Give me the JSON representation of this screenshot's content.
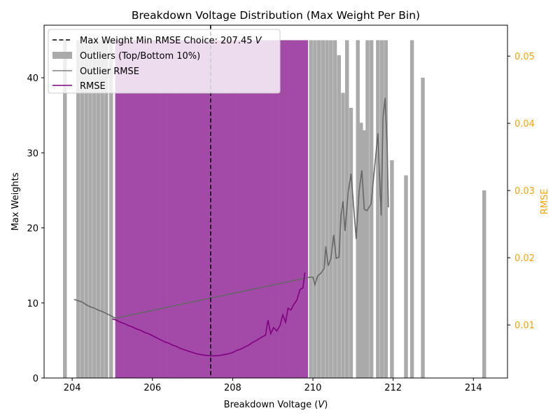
{
  "chart_data": {
    "type": "bar",
    "title": "Breakdown Voltage Distribution (Max Weight Per Bin)",
    "xlabel": "Breakdown Voltage (",
    "xlabel_italic": "V",
    "xlabel_tail": ")",
    "ylabel": "Max Weights",
    "y2label": "RMSE",
    "xlim": [
      203.3,
      214.85
    ],
    "ylim": [
      0,
      47.0
    ],
    "y2lim": [
      0.0021,
      0.0546
    ],
    "xticks": [
      204,
      206,
      208,
      210,
      212,
      214
    ],
    "yticks": [
      0,
      10,
      20,
      30,
      40
    ],
    "y2ticks": [
      0.01,
      0.02,
      0.03,
      0.04,
      0.05
    ],
    "y2ticks_labels": [
      "0.01",
      "0.02",
      "0.03",
      "0.04",
      "0.05"
    ],
    "colors": {
      "outlier_bar": "#aaaaaa",
      "main_bar": "#a34aa8",
      "rmse_line": "#800080",
      "outlier_rmse_line": "#666666",
      "choice_line": "#000000",
      "right_axis": "#ffa500"
    },
    "choice": {
      "x": 207.45,
      "legend_label": "Max Weight Min RMSE Choice: 207.45 ",
      "legend_unit": "V"
    },
    "bar_width": 0.095,
    "outlier_bars": [
      {
        "x": 203.82,
        "y": 45
      },
      {
        "x": 204.15,
        "y": 45
      },
      {
        "x": 204.25,
        "y": 45
      },
      {
        "x": 204.35,
        "y": 45
      },
      {
        "x": 204.45,
        "y": 45
      },
      {
        "x": 204.55,
        "y": 45
      },
      {
        "x": 204.65,
        "y": 45
      },
      {
        "x": 204.75,
        "y": 45
      },
      {
        "x": 204.85,
        "y": 45
      },
      {
        "x": 204.97,
        "y": 45
      },
      {
        "x": 209.95,
        "y": 45
      },
      {
        "x": 210.05,
        "y": 45
      },
      {
        "x": 210.15,
        "y": 45
      },
      {
        "x": 210.25,
        "y": 45
      },
      {
        "x": 210.35,
        "y": 45
      },
      {
        "x": 210.45,
        "y": 45
      },
      {
        "x": 210.55,
        "y": 45
      },
      {
        "x": 210.65,
        "y": 43
      },
      {
        "x": 210.75,
        "y": 38
      },
      {
        "x": 210.85,
        "y": 45
      },
      {
        "x": 210.95,
        "y": 36
      },
      {
        "x": 211.12,
        "y": 45
      },
      {
        "x": 211.2,
        "y": 34
      },
      {
        "x": 211.28,
        "y": 33
      },
      {
        "x": 211.36,
        "y": 45
      },
      {
        "x": 211.46,
        "y": 45
      },
      {
        "x": 211.62,
        "y": 45
      },
      {
        "x": 211.72,
        "y": 45
      },
      {
        "x": 211.82,
        "y": 45
      },
      {
        "x": 211.97,
        "y": 29
      },
      {
        "x": 212.32,
        "y": 27
      },
      {
        "x": 212.47,
        "y": 45
      },
      {
        "x": 212.74,
        "y": 40
      },
      {
        "x": 214.27,
        "y": 25
      }
    ],
    "main_bars": [
      {
        "x": 205.12,
        "y": 45
      },
      {
        "x": 205.22,
        "y": 45
      },
      {
        "x": 205.32,
        "y": 45
      },
      {
        "x": 205.42,
        "y": 45
      },
      {
        "x": 205.52,
        "y": 45
      },
      {
        "x": 205.62,
        "y": 45
      },
      {
        "x": 205.72,
        "y": 45
      },
      {
        "x": 205.82,
        "y": 45
      },
      {
        "x": 205.92,
        "y": 45
      },
      {
        "x": 206.02,
        "y": 45
      },
      {
        "x": 206.12,
        "y": 45
      },
      {
        "x": 206.22,
        "y": 45
      },
      {
        "x": 206.32,
        "y": 45
      },
      {
        "x": 206.42,
        "y": 45
      },
      {
        "x": 206.52,
        "y": 45
      },
      {
        "x": 206.62,
        "y": 45
      },
      {
        "x": 206.72,
        "y": 45
      },
      {
        "x": 206.82,
        "y": 45
      },
      {
        "x": 206.92,
        "y": 45
      },
      {
        "x": 207.02,
        "y": 45
      },
      {
        "x": 207.12,
        "y": 45
      },
      {
        "x": 207.22,
        "y": 45
      },
      {
        "x": 207.32,
        "y": 45
      },
      {
        "x": 207.42,
        "y": 45
      },
      {
        "x": 207.52,
        "y": 45
      },
      {
        "x": 207.62,
        "y": 45
      },
      {
        "x": 207.72,
        "y": 45
      },
      {
        "x": 207.82,
        "y": 45
      },
      {
        "x": 207.92,
        "y": 45
      },
      {
        "x": 208.02,
        "y": 45
      },
      {
        "x": 208.12,
        "y": 45
      },
      {
        "x": 208.22,
        "y": 45
      },
      {
        "x": 208.32,
        "y": 45
      },
      {
        "x": 208.42,
        "y": 45
      },
      {
        "x": 208.52,
        "y": 45
      },
      {
        "x": 208.62,
        "y": 45
      },
      {
        "x": 208.72,
        "y": 45
      },
      {
        "x": 208.82,
        "y": 45
      },
      {
        "x": 208.92,
        "y": 45
      },
      {
        "x": 209.02,
        "y": 45
      },
      {
        "x": 209.12,
        "y": 45
      },
      {
        "x": 209.22,
        "y": 45
      },
      {
        "x": 209.32,
        "y": 45
      },
      {
        "x": 209.42,
        "y": 45
      },
      {
        "x": 209.52,
        "y": 45
      },
      {
        "x": 209.62,
        "y": 45
      },
      {
        "x": 209.72,
        "y": 45
      },
      {
        "x": 209.82,
        "y": 45
      }
    ],
    "outlier_rmse": [
      [
        204.05,
        0.0138
      ],
      [
        204.15,
        0.0136
      ],
      [
        204.25,
        0.0134
      ],
      [
        204.35,
        0.013
      ],
      [
        204.45,
        0.0127
      ],
      [
        204.55,
        0.0125
      ],
      [
        204.65,
        0.0122
      ],
      [
        204.75,
        0.012
      ],
      [
        204.85,
        0.0117
      ],
      [
        204.95,
        0.0114
      ],
      [
        205.08,
        0.011
      ],
      [
        209.92,
        0.0171
      ],
      [
        210.0,
        0.0171
      ],
      [
        210.05,
        0.016
      ],
      [
        210.12,
        0.0173
      ],
      [
        210.2,
        0.0177
      ],
      [
        210.28,
        0.0184
      ],
      [
        210.32,
        0.0217
      ],
      [
        210.38,
        0.0188
      ],
      [
        210.45,
        0.0199
      ],
      [
        210.52,
        0.0234
      ],
      [
        210.58,
        0.0199
      ],
      [
        210.65,
        0.0201
      ],
      [
        210.7,
        0.0263
      ],
      [
        210.75,
        0.0284
      ],
      [
        210.8,
        0.024
      ],
      [
        210.88,
        0.0298
      ],
      [
        210.95,
        0.0325
      ],
      [
        211.08,
        0.0228
      ],
      [
        211.15,
        0.0298
      ],
      [
        211.22,
        0.033
      ],
      [
        211.28,
        0.0272
      ],
      [
        211.35,
        0.027
      ],
      [
        211.45,
        0.028
      ],
      [
        211.62,
        0.0385
      ],
      [
        211.7,
        0.0263
      ],
      [
        211.75,
        0.041
      ],
      [
        211.8,
        0.0438
      ],
      [
        211.85,
        0.0365
      ],
      [
        211.88,
        0.0275
      ]
    ],
    "rmse": [
      [
        205.0,
        0.0109
      ],
      [
        205.1,
        0.0107
      ],
      [
        205.2,
        0.0104
      ],
      [
        205.3,
        0.0102
      ],
      [
        205.4,
        0.0099
      ],
      [
        205.5,
        0.0097
      ],
      [
        205.6,
        0.0094
      ],
      [
        205.7,
        0.0092
      ],
      [
        205.8,
        0.0089
      ],
      [
        205.9,
        0.0087
      ],
      [
        206.0,
        0.0084
      ],
      [
        206.1,
        0.0081
      ],
      [
        206.2,
        0.0078
      ],
      [
        206.3,
        0.0075
      ],
      [
        206.4,
        0.0073
      ],
      [
        206.5,
        0.007
      ],
      [
        206.6,
        0.0068
      ],
      [
        206.7,
        0.0065
      ],
      [
        206.8,
        0.0063
      ],
      [
        206.9,
        0.0061
      ],
      [
        207.0,
        0.0059
      ],
      [
        207.1,
        0.0057
      ],
      [
        207.2,
        0.0056
      ],
      [
        207.3,
        0.0055
      ],
      [
        207.45,
        0.0054
      ],
      [
        207.6,
        0.0054
      ],
      [
        207.7,
        0.0055
      ],
      [
        207.8,
        0.0056
      ],
      [
        207.9,
        0.0057
      ],
      [
        208.0,
        0.0059
      ],
      [
        208.1,
        0.0062
      ],
      [
        208.2,
        0.0064
      ],
      [
        208.3,
        0.0067
      ],
      [
        208.4,
        0.007
      ],
      [
        208.5,
        0.0074
      ],
      [
        208.6,
        0.0077
      ],
      [
        208.7,
        0.0081
      ],
      [
        208.82,
        0.0085
      ],
      [
        208.88,
        0.0107
      ],
      [
        208.95,
        0.0087
      ],
      [
        209.02,
        0.0096
      ],
      [
        209.1,
        0.0091
      ],
      [
        209.18,
        0.0099
      ],
      [
        209.25,
        0.0115
      ],
      [
        209.32,
        0.0104
      ],
      [
        209.38,
        0.0125
      ],
      [
        209.45,
        0.0122
      ],
      [
        209.52,
        0.013
      ],
      [
        209.6,
        0.0137
      ],
      [
        209.68,
        0.0153
      ],
      [
        209.75,
        0.0155
      ],
      [
        209.8,
        0.0178
      ]
    ],
    "legend": {
      "position": "top-left",
      "entries": [
        {
          "label": "Max Weight Min RMSE Choice: 207.45 ",
          "italic_suffix": "V",
          "kind": "dash",
          "color": "#000000"
        },
        {
          "label": "Outliers (Top/Bottom 10%)",
          "kind": "patch",
          "color": "#aaaaaa"
        },
        {
          "label": "Outlier RMSE",
          "kind": "line",
          "color": "#808080"
        },
        {
          "label": "RMSE",
          "kind": "line",
          "color": "#800080"
        }
      ]
    }
  }
}
